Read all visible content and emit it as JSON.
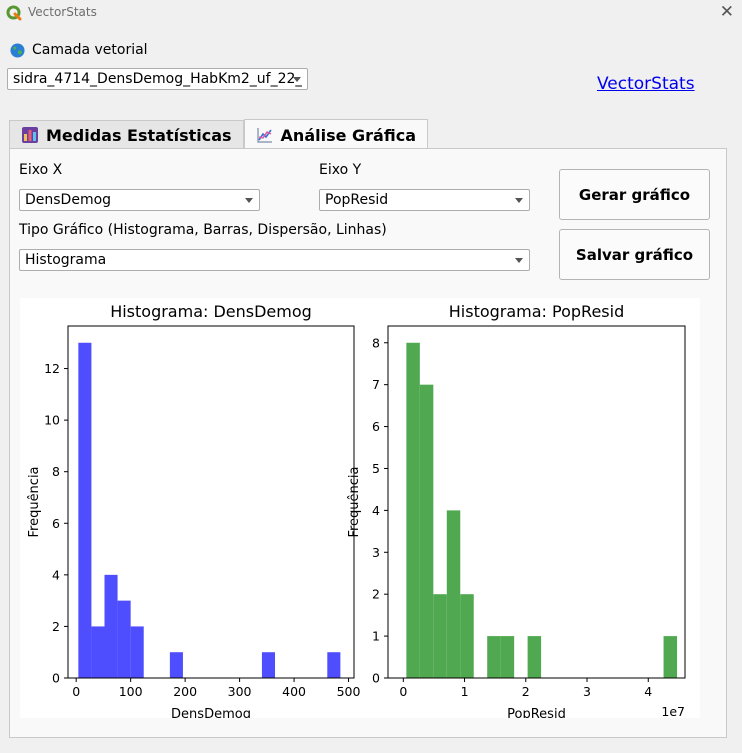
{
  "window": {
    "title": "VectorStats",
    "close_glyph": "✕"
  },
  "layer": {
    "label": "Camada vetorial",
    "selected": "sidra_4714_DensDemog_HabKm2_uf_22_"
  },
  "link": {
    "label": "VectorStats"
  },
  "tabs": [
    {
      "label": "Medidas Estatísticas",
      "icon": "bar-chart-icon",
      "active": false
    },
    {
      "label": "Análise Gráfica",
      "icon": "line-chart-icon",
      "active": true
    }
  ],
  "form": {
    "x_axis_label": "Eixo X",
    "x_axis_value": "DensDemog",
    "y_axis_label": "Eixo  Y",
    "y_axis_value": "PopResid",
    "chart_type_label": "Tipo Gráfico (Histograma, Barras, Dispersão, Linhas)",
    "chart_type_value": "Histograma",
    "generate_button": "Gerar gráfico",
    "save_button": "Salvar gráfico"
  },
  "colors": {
    "hist1": "#4a4aff",
    "hist2": "#4ca64c",
    "link": "#0000ee"
  },
  "chart_data": [
    {
      "type": "bar",
      "title": "Histograma: DensDemog",
      "xlabel": "DensDemog",
      "ylabel": "Frequência",
      "color": "#4a4aff",
      "xlim": [
        -15,
        510
      ],
      "ylim": [
        0,
        13.65
      ],
      "xticks": [
        0,
        100,
        200,
        300,
        400,
        500
      ],
      "yticks": [
        0,
        2,
        4,
        6,
        8,
        10,
        12
      ],
      "bins": [
        {
          "x0": 4,
          "x1": 28,
          "value": 13
        },
        {
          "x0": 28,
          "x1": 52,
          "value": 2
        },
        {
          "x0": 52,
          "x1": 76,
          "value": 4
        },
        {
          "x0": 76,
          "x1": 100,
          "value": 3
        },
        {
          "x0": 100,
          "x1": 124,
          "value": 2
        },
        {
          "x0": 172,
          "x1": 196,
          "value": 1
        },
        {
          "x0": 341,
          "x1": 365,
          "value": 1
        },
        {
          "x0": 461,
          "x1": 485,
          "value": 1
        }
      ]
    },
    {
      "type": "bar",
      "title": "Histograma: PopResid",
      "xlabel": "PopResid",
      "ylabel": "Frequência",
      "offset_text": "1e7",
      "color": "#4ca64c",
      "xlim": [
        -0.25,
        4.6
      ],
      "ylim": [
        0,
        8.4
      ],
      "xticks": [
        0,
        1,
        2,
        3,
        4
      ],
      "yticks": [
        0,
        1,
        2,
        3,
        4,
        5,
        6,
        7,
        8
      ],
      "bins": [
        {
          "x0": 0.05,
          "x1": 0.27,
          "value": 8
        },
        {
          "x0": 0.27,
          "x1": 0.49,
          "value": 7
        },
        {
          "x0": 0.49,
          "x1": 0.71,
          "value": 2
        },
        {
          "x0": 0.71,
          "x1": 0.93,
          "value": 4
        },
        {
          "x0": 0.93,
          "x1": 1.15,
          "value": 2
        },
        {
          "x0": 1.37,
          "x1": 1.59,
          "value": 1
        },
        {
          "x0": 1.59,
          "x1": 1.81,
          "value": 1
        },
        {
          "x0": 2.03,
          "x1": 2.25,
          "value": 1
        },
        {
          "x0": 4.25,
          "x1": 4.47,
          "value": 1
        }
      ]
    }
  ]
}
